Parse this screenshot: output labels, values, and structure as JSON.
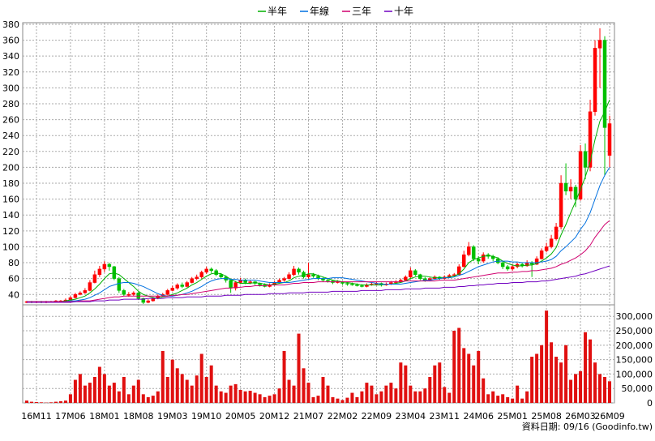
{
  "chart_data": {
    "type": "candlestick",
    "categories": [
      null,
      null,
      "16M11",
      null,
      null,
      null,
      null,
      null,
      null,
      "17M06",
      null,
      null,
      null,
      null,
      null,
      null,
      "18M01",
      null,
      null,
      null,
      null,
      null,
      null,
      "18M08",
      null,
      null,
      null,
      null,
      null,
      null,
      "19M03",
      null,
      null,
      null,
      null,
      null,
      null,
      "19M10",
      null,
      null,
      null,
      null,
      null,
      null,
      "20M05",
      null,
      null,
      null,
      null,
      null,
      null,
      "20M12",
      null,
      null,
      null,
      null,
      null,
      null,
      "21M07",
      null,
      null,
      null,
      null,
      null,
      null,
      "22M02",
      null,
      null,
      null,
      null,
      null,
      null,
      "22M09",
      null,
      null,
      null,
      null,
      null,
      null,
      "23M04",
      null,
      null,
      null,
      null,
      null,
      null,
      "23M11",
      null,
      null,
      null,
      null,
      null,
      null,
      "24M06",
      null,
      null,
      null,
      null,
      null,
      null,
      "25M01",
      null,
      null,
      null,
      null,
      null,
      null,
      "25M08",
      null,
      null,
      null,
      null,
      null,
      null,
      "26M03",
      null,
      null,
      null,
      null,
      null,
      "26M09"
    ],
    "open": [
      30,
      31,
      30,
      31,
      30,
      31,
      31,
      32,
      32,
      33,
      36,
      40,
      42,
      45,
      55,
      65,
      72,
      78,
      75,
      60,
      45,
      40,
      40,
      42,
      35,
      30,
      32,
      35,
      38,
      40,
      45,
      48,
      52,
      50,
      55,
      60,
      62,
      68,
      72,
      70,
      65,
      62,
      58,
      48,
      55,
      58,
      55,
      56,
      54,
      52,
      50,
      52,
      55,
      58,
      60,
      65,
      72,
      68,
      62,
      65,
      63,
      60,
      58,
      57,
      55,
      56,
      54,
      53,
      52,
      51,
      50,
      52,
      53,
      54,
      52,
      53,
      55,
      56,
      58,
      62,
      70,
      65,
      60,
      58,
      60,
      62,
      60,
      62,
      64,
      65,
      75,
      90,
      100,
      85,
      82,
      90,
      88,
      85,
      80,
      75,
      72,
      75,
      78,
      76,
      80,
      78,
      85,
      95,
      100,
      110,
      125,
      180,
      170,
      175,
      160,
      220,
      200,
      270,
      350,
      360,
      215
    ],
    "high": [
      32,
      32,
      32,
      32,
      32,
      32,
      33,
      33,
      35,
      38,
      42,
      44,
      48,
      58,
      70,
      76,
      82,
      80,
      76,
      62,
      47,
      43,
      44,
      43,
      36,
      34,
      37,
      40,
      42,
      47,
      51,
      54,
      55,
      57,
      62,
      65,
      70,
      75,
      74,
      72,
      67,
      64,
      60,
      57,
      61,
      60,
      58,
      57,
      55,
      54,
      54,
      57,
      60,
      62,
      68,
      76,
      74,
      70,
      80,
      67,
      65,
      62,
      60,
      58,
      58,
      57,
      56,
      55,
      54,
      53,
      54,
      55,
      56,
      55,
      55,
      57,
      58,
      60,
      64,
      74,
      72,
      66,
      62,
      62,
      64,
      63,
      64,
      66,
      67,
      78,
      95,
      106,
      102,
      88,
      93,
      92,
      90,
      87,
      82,
      77,
      78,
      80,
      80,
      83,
      82,
      88,
      98,
      105,
      115,
      130,
      190,
      205,
      185,
      178,
      228,
      230,
      285,
      360,
      375,
      365,
      265
    ],
    "low": [
      29,
      29,
      29,
      29,
      29,
      30,
      30,
      31,
      31,
      32,
      35,
      39,
      41,
      44,
      54,
      62,
      68,
      70,
      58,
      42,
      38,
      37,
      38,
      33,
      28,
      29,
      31,
      34,
      37,
      39,
      44,
      46,
      48,
      49,
      54,
      58,
      60,
      66,
      67,
      63,
      60,
      55,
      42,
      45,
      53,
      53,
      53,
      52,
      50,
      49,
      49,
      51,
      54,
      56,
      59,
      63,
      65,
      60,
      60,
      61,
      58,
      56,
      55,
      53,
      54,
      52,
      51,
      51,
      50,
      49,
      49,
      51,
      52,
      50,
      51,
      52,
      54,
      55,
      57,
      60,
      63,
      58,
      56,
      57,
      59,
      58,
      59,
      61,
      63,
      64,
      74,
      88,
      82,
      78,
      80,
      85,
      82,
      78,
      72,
      70,
      70,
      73,
      74,
      75,
      62,
      77,
      84,
      93,
      98,
      108,
      122,
      165,
      160,
      150,
      158,
      185,
      195,
      265,
      300,
      190,
      200
    ],
    "close": [
      31,
      30,
      31,
      30,
      31,
      31,
      32,
      32,
      33,
      36,
      40,
      42,
      45,
      55,
      65,
      72,
      78,
      75,
      60,
      45,
      40,
      40,
      42,
      35,
      30,
      32,
      35,
      38,
      40,
      45,
      48,
      52,
      50,
      55,
      60,
      62,
      68,
      72,
      70,
      65,
      62,
      58,
      48,
      55,
      58,
      55,
      56,
      54,
      52,
      50,
      52,
      55,
      58,
      60,
      65,
      72,
      68,
      62,
      65,
      63,
      60,
      58,
      57,
      55,
      56,
      54,
      53,
      52,
      51,
      50,
      52,
      53,
      54,
      52,
      53,
      55,
      56,
      58,
      62,
      70,
      65,
      60,
      58,
      60,
      62,
      60,
      62,
      64,
      65,
      75,
      90,
      100,
      85,
      82,
      90,
      88,
      85,
      80,
      75,
      72,
      75,
      78,
      76,
      80,
      78,
      85,
      95,
      100,
      110,
      125,
      180,
      170,
      175,
      160,
      220,
      200,
      270,
      350,
      360,
      250,
      255
    ],
    "up_color": "#ff0000",
    "down_color": "#00c000",
    "series": [
      {
        "name": "半年",
        "color": "#00b000",
        "values": [
          31,
          31,
          31,
          31,
          31,
          31,
          31,
          31,
          32,
          33,
          34,
          36,
          38,
          42,
          47,
          53,
          60,
          66,
          67,
          65,
          60,
          55,
          50,
          44,
          40,
          38,
          36,
          35,
          37,
          38,
          40,
          42,
          45,
          48,
          52,
          55,
          59,
          63,
          66,
          67,
          66,
          63,
          59,
          56,
          54,
          54,
          54,
          55,
          54,
          53,
          52,
          53,
          54,
          55,
          57,
          61,
          63,
          64,
          66,
          66,
          64,
          62,
          60,
          58,
          57,
          56,
          55,
          54,
          53,
          52,
          52,
          52,
          52,
          52,
          53,
          53,
          54,
          55,
          57,
          60,
          62,
          63,
          63,
          62,
          61,
          61,
          61,
          62,
          63,
          66,
          72,
          80,
          84,
          86,
          88,
          89,
          88,
          86,
          82,
          79,
          77,
          76,
          76,
          77,
          77,
          79,
          82,
          86,
          91,
          99,
          115,
          128,
          143,
          157,
          172,
          188,
          207,
          235,
          258,
          270,
          285
        ]
      },
      {
        "name": "年線",
        "color": "#0070e0",
        "values": [
          31,
          31,
          31,
          31,
          31,
          31,
          31,
          31,
          31,
          32,
          32,
          33,
          34,
          36,
          39,
          42,
          46,
          50,
          52,
          54,
          55,
          55,
          54,
          52,
          50,
          47,
          44,
          41,
          39,
          38,
          38,
          39,
          40,
          42,
          44,
          47,
          50,
          54,
          57,
          59,
          60,
          60,
          59,
          59,
          58,
          58,
          58,
          58,
          57,
          56,
          55,
          55,
          55,
          55,
          55,
          56,
          57,
          58,
          59,
          60,
          60,
          60,
          60,
          61,
          61,
          61,
          60,
          59,
          58,
          57,
          56,
          55,
          54,
          53,
          53,
          53,
          53,
          53,
          54,
          55,
          56,
          57,
          58,
          58,
          59,
          60,
          61,
          61,
          62,
          64,
          66,
          69,
          72,
          75,
          77,
          79,
          81,
          82,
          82,
          82,
          81,
          81,
          80,
          80,
          80,
          80,
          81,
          82,
          84,
          88,
          95,
          100,
          106,
          112,
          122,
          130,
          143,
          160,
          177,
          190,
          200
        ]
      },
      {
        "name": "三年",
        "color": "#d0006f",
        "values": [
          31,
          31,
          31,
          31,
          31,
          31,
          31,
          31,
          31,
          31,
          31,
          32,
          32,
          32,
          33,
          34,
          35,
          36,
          37,
          37,
          38,
          38,
          38,
          38,
          38,
          38,
          38,
          38,
          38,
          38,
          39,
          39,
          40,
          40,
          41,
          42,
          43,
          44,
          45,
          46,
          47,
          48,
          48,
          49,
          49,
          50,
          50,
          51,
          51,
          51,
          52,
          52,
          52,
          52,
          53,
          54,
          54,
          55,
          55,
          55,
          56,
          56,
          56,
          56,
          56,
          56,
          56,
          56,
          56,
          56,
          56,
          56,
          56,
          56,
          56,
          56,
          56,
          56,
          57,
          57,
          57,
          57,
          57,
          57,
          57,
          58,
          58,
          58,
          58,
          59,
          60,
          61,
          62,
          63,
          64,
          65,
          66,
          67,
          67,
          67,
          68,
          68,
          69,
          69,
          70,
          70,
          71,
          72,
          73,
          75,
          78,
          80,
          83,
          86,
          90,
          95,
          102,
          112,
          120,
          128,
          133
        ]
      },
      {
        "name": "十年",
        "color": "#7000c0",
        "values": [
          30,
          30,
          30,
          30,
          30,
          30,
          30,
          30,
          30,
          30,
          31,
          31,
          31,
          31,
          32,
          32,
          32,
          33,
          33,
          33,
          34,
          34,
          34,
          34,
          34,
          35,
          35,
          35,
          35,
          36,
          36,
          36,
          36,
          37,
          37,
          37,
          37,
          38,
          38,
          38,
          38,
          39,
          39,
          39,
          39,
          40,
          40,
          40,
          40,
          40,
          41,
          41,
          41,
          41,
          42,
          42,
          42,
          42,
          43,
          43,
          43,
          43,
          43,
          44,
          44,
          44,
          44,
          44,
          44,
          45,
          45,
          45,
          45,
          45,
          46,
          46,
          46,
          46,
          47,
          47,
          47,
          47,
          48,
          48,
          48,
          48,
          49,
          49,
          49,
          50,
          50,
          51,
          51,
          52,
          52,
          53,
          53,
          54,
          54,
          54,
          55,
          55,
          55,
          56,
          56,
          56,
          57,
          57,
          58,
          59,
          60,
          61,
          62,
          63,
          65,
          66,
          68,
          70,
          72,
          74,
          76
        ]
      }
    ],
    "ylim": [
      27,
      382
    ],
    "yticks": [
      40,
      60,
      80,
      100,
      120,
      140,
      160,
      180,
      200,
      220,
      240,
      260,
      280,
      300,
      320,
      340,
      360,
      380
    ],
    "grid": true,
    "volume": {
      "color": "#e01010",
      "values": [
        8000,
        4000,
        3000,
        2000,
        1000,
        2000,
        4000,
        6000,
        8000,
        30000,
        80000,
        100000,
        60000,
        70000,
        90000,
        125000,
        100000,
        60000,
        70000,
        40000,
        90000,
        30000,
        60000,
        80000,
        30000,
        20000,
        25000,
        40000,
        180000,
        90000,
        150000,
        120000,
        100000,
        80000,
        60000,
        95000,
        170000,
        90000,
        130000,
        60000,
        40000,
        35000,
        60000,
        65000,
        45000,
        40000,
        42000,
        35000,
        30000,
        20000,
        25000,
        30000,
        50000,
        180000,
        80000,
        60000,
        240000,
        120000,
        70000,
        20000,
        25000,
        90000,
        60000,
        20000,
        15000,
        10000,
        18000,
        35000,
        20000,
        40000,
        70000,
        60000,
        30000,
        40000,
        60000,
        70000,
        50000,
        140000,
        130000,
        60000,
        40000,
        40000,
        50000,
        90000,
        130000,
        140000,
        55000,
        35000,
        250000,
        260000,
        190000,
        170000,
        130000,
        180000,
        85000,
        30000,
        40000,
        25000,
        30000,
        20000,
        15000,
        60000,
        15000,
        40000,
        160000,
        170000,
        200000,
        320000,
        210000,
        160000,
        140000,
        200000,
        80000,
        100000,
        110000,
        245000,
        220000,
        140000,
        100000,
        90000,
        75000
      ],
      "ylim": [
        0,
        340000
      ],
      "yticks": [
        0,
        {
          "value": 50000,
          "label": "50,000"
        },
        {
          "value": 100000,
          "label": "100,000"
        },
        {
          "value": 150000,
          "label": "150,000"
        },
        {
          "value": 200000,
          "label": "200,000"
        },
        {
          "value": 250000,
          "label": "250,000"
        },
        {
          "value": 300000,
          "label": "300,000"
        }
      ]
    },
    "footer": "資料日期: 09/16  (Goodinfo.tw)"
  }
}
